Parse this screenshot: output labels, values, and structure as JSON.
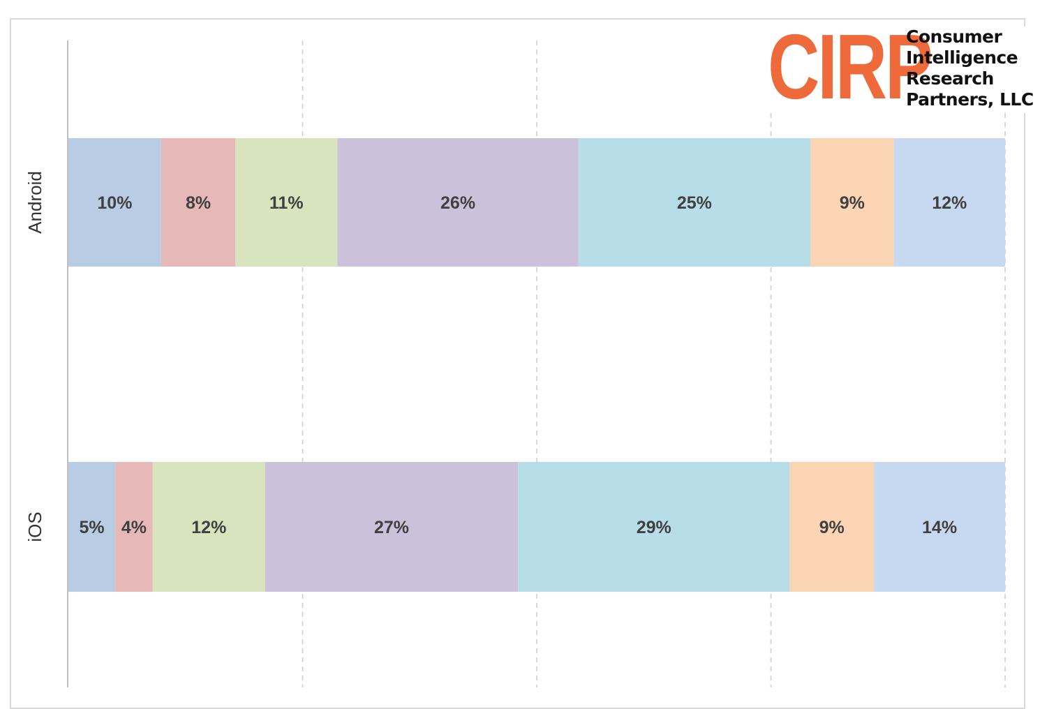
{
  "chart_data": {
    "type": "bar",
    "orientation": "horizontal",
    "stacked": true,
    "percent_stacked": true,
    "title": "",
    "xlabel": "",
    "ylabel": "",
    "categories": [
      "Android",
      "iOS"
    ],
    "xlim": [
      0,
      100
    ],
    "grid": "vertical dashed",
    "legend": "none",
    "series": [
      {
        "values": [
          10,
          5
        ],
        "labels": [
          "10%",
          "5%"
        ],
        "color": "#b8cce4"
      },
      {
        "values": [
          8,
          4
        ],
        "labels": [
          "8%",
          "4%"
        ],
        "color": "#e6b9b8"
      },
      {
        "values": [
          11,
          12
        ],
        "labels": [
          "11%",
          "12%"
        ],
        "color": "#d7e4bd"
      },
      {
        "values": [
          26,
          27
        ],
        "labels": [
          "26%",
          "27%"
        ],
        "color": "#ccc1da"
      },
      {
        "values": [
          25,
          29
        ],
        "labels": [
          "25%",
          "29%"
        ],
        "color": "#b7dee8"
      },
      {
        "values": [
          9,
          9
        ],
        "labels": [
          "9%",
          "9%"
        ],
        "color": "#fcd5b5"
      },
      {
        "values": [
          12,
          14
        ],
        "labels": [
          "12%",
          "14%"
        ],
        "color": "#c6d9f1"
      }
    ]
  },
  "logo": {
    "mark": "CIRP",
    "lines": [
      "Consumer",
      "Intelligence",
      "Research",
      "Partners, LLC"
    ],
    "mark_color": "#ee6a3a"
  },
  "colors": {
    "gridline": "#cfcfcf",
    "axis": "#bfbfbf",
    "label_text": "#404040",
    "frame": "#d9d9d9"
  }
}
